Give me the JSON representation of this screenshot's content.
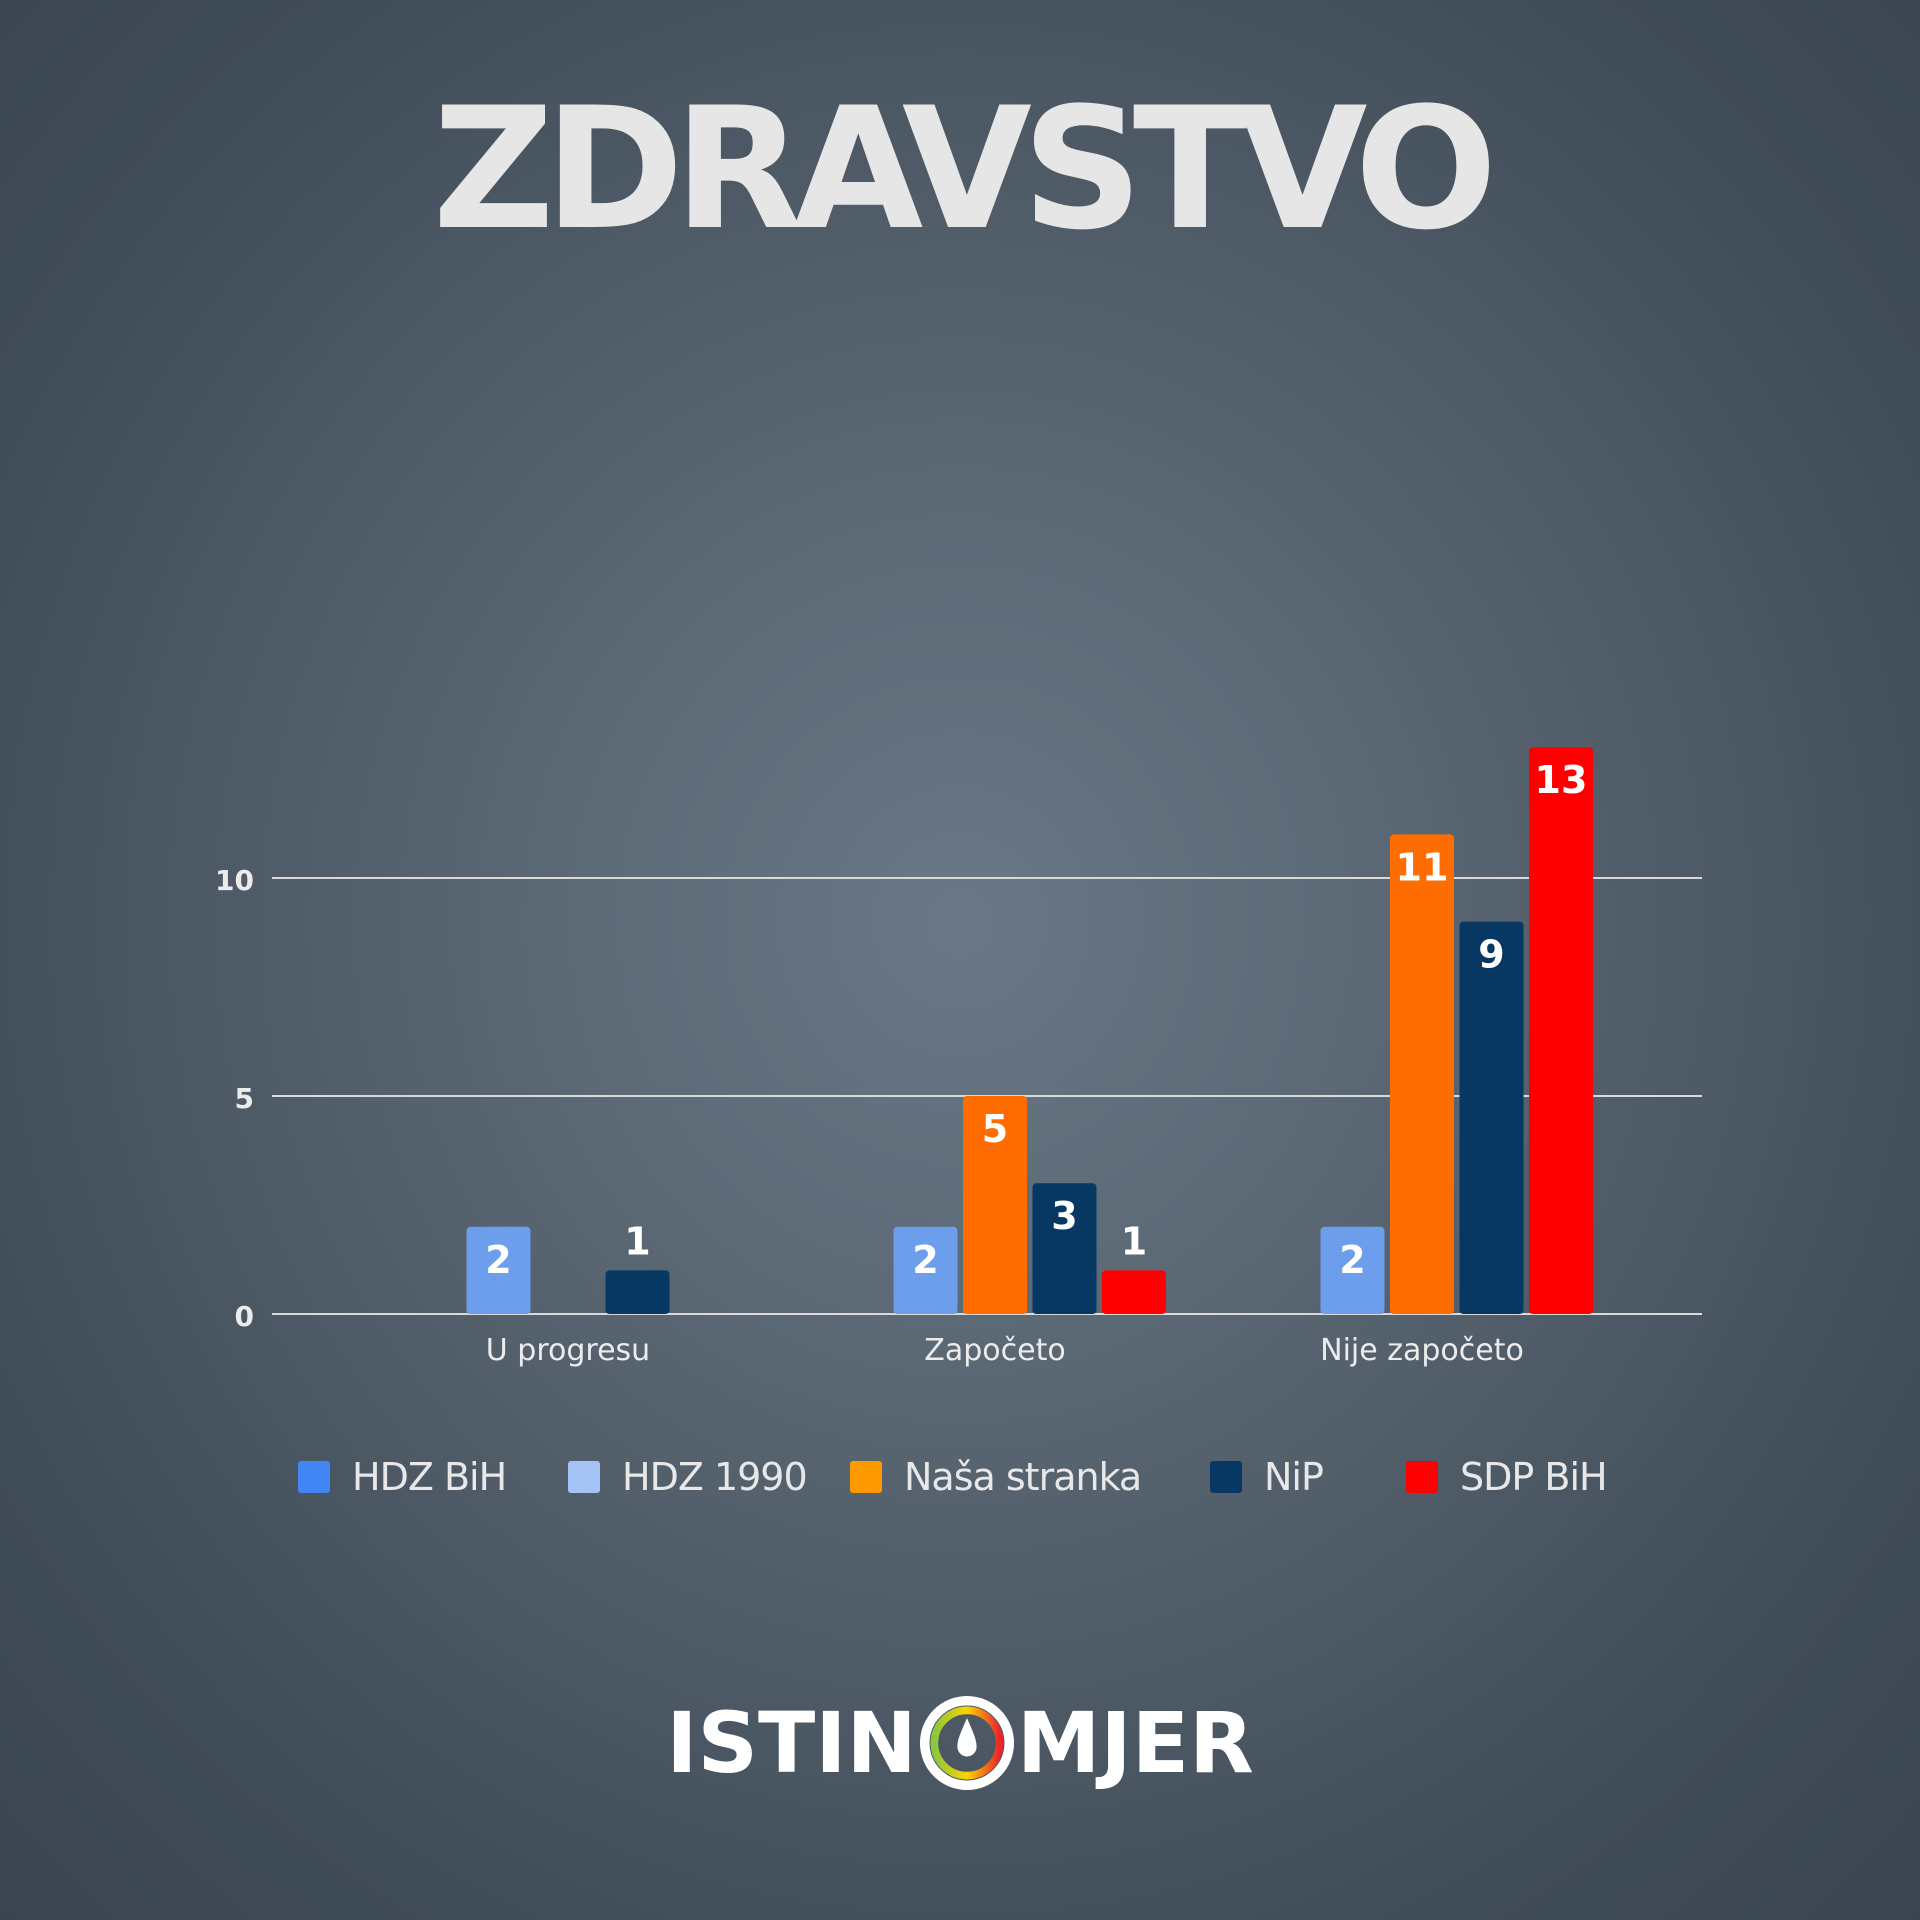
{
  "title": "ZDRAVSTVO",
  "chart_data": {
    "type": "bar",
    "categories": [
      "U progresu",
      "Započeto",
      "Nije započeto"
    ],
    "ylim": [
      0,
      15
    ],
    "yticks": [
      0,
      5,
      10
    ],
    "grid": true,
    "legend_position": "bottom",
    "series": [
      {
        "name": "HDZ BiH",
        "color": "#4285f4",
        "values": [
          null,
          null,
          null
        ]
      },
      {
        "name": "HDZ 1990",
        "color": "#a4c2f4",
        "bar_color": "#6d9eeb",
        "values": [
          2,
          2,
          2
        ]
      },
      {
        "name": "Naša stranka",
        "color": "#ff9900",
        "bar_color": "#ff6d01",
        "values": [
          null,
          5,
          11
        ]
      },
      {
        "name": "NiP",
        "color": "#073763",
        "bar_color": "#073763",
        "values": [
          1,
          3,
          9
        ]
      },
      {
        "name": "SDP BiH",
        "color": "#ff0000",
        "bar_color": "#ff0000",
        "values": [
          null,
          1,
          13
        ]
      }
    ]
  },
  "logo": {
    "left": "ISTIN",
    "right": "MJER"
  }
}
